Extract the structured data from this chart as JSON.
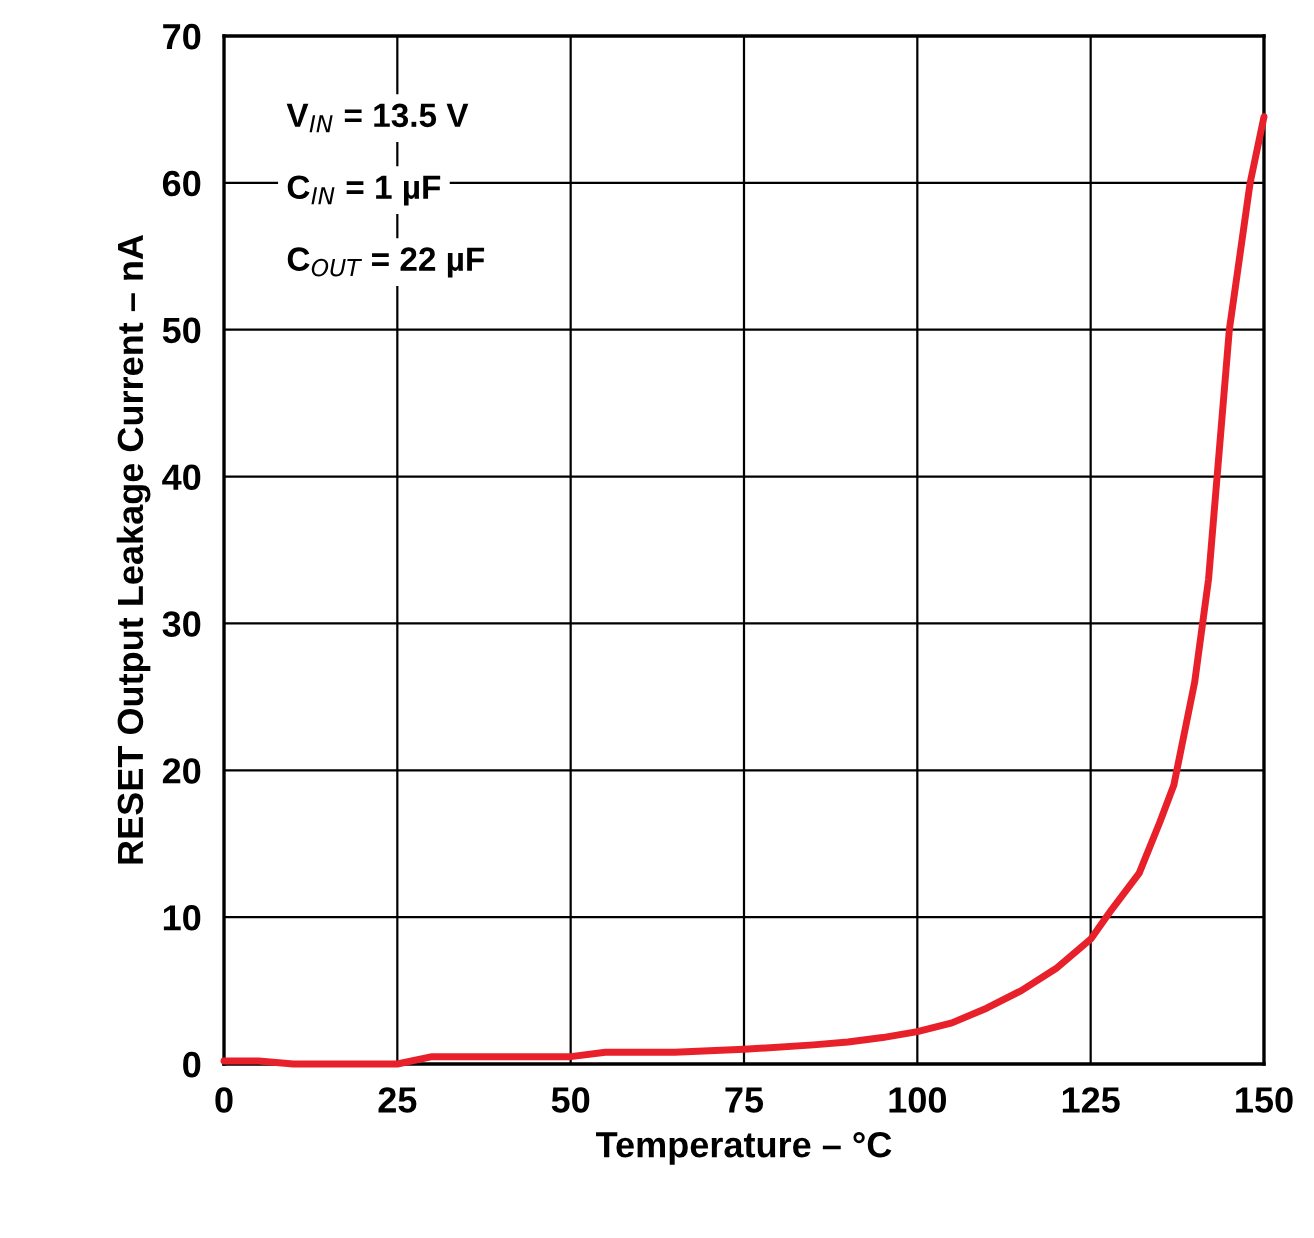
{
  "chart_data": {
    "type": "line",
    "xlabel": "Temperature – °C",
    "ylabel": "RESET Output Leakage Current – nA",
    "annotations": [
      "V$_{IN}$ = 13.5 V",
      "C$_{IN}$ = 1 µF",
      "C$_{OUT}$ = 22 µF"
    ],
    "x": [
      0,
      5,
      10,
      15,
      20,
      25,
      30,
      40,
      50,
      55,
      65,
      75,
      85,
      90,
      95,
      100,
      105,
      110,
      115,
      120,
      125,
      128,
      132,
      135,
      137,
      140,
      142,
      145,
      148,
      150
    ],
    "series": [
      {
        "color": "#e8202a",
        "values": [
          0.2,
          0.2,
          0,
          0,
          0,
          0,
          0.5,
          0.5,
          0.5,
          0.8,
          0.8,
          1,
          1.3,
          1.5,
          1.8,
          2.2,
          2.8,
          3.8,
          5,
          6.5,
          8.5,
          10.5,
          13,
          16.5,
          19,
          26,
          33,
          50,
          60,
          64.5
        ]
      }
    ],
    "xlim": [
      0,
      150
    ],
    "xticks": [
      0,
      25,
      50,
      75,
      100,
      125,
      150
    ],
    "ylim": [
      0,
      70
    ],
    "yticks": [
      0,
      10,
      20,
      30,
      40,
      50,
      60,
      70
    ],
    "grid": true,
    "marker": "none",
    "line_style": "solid"
  }
}
